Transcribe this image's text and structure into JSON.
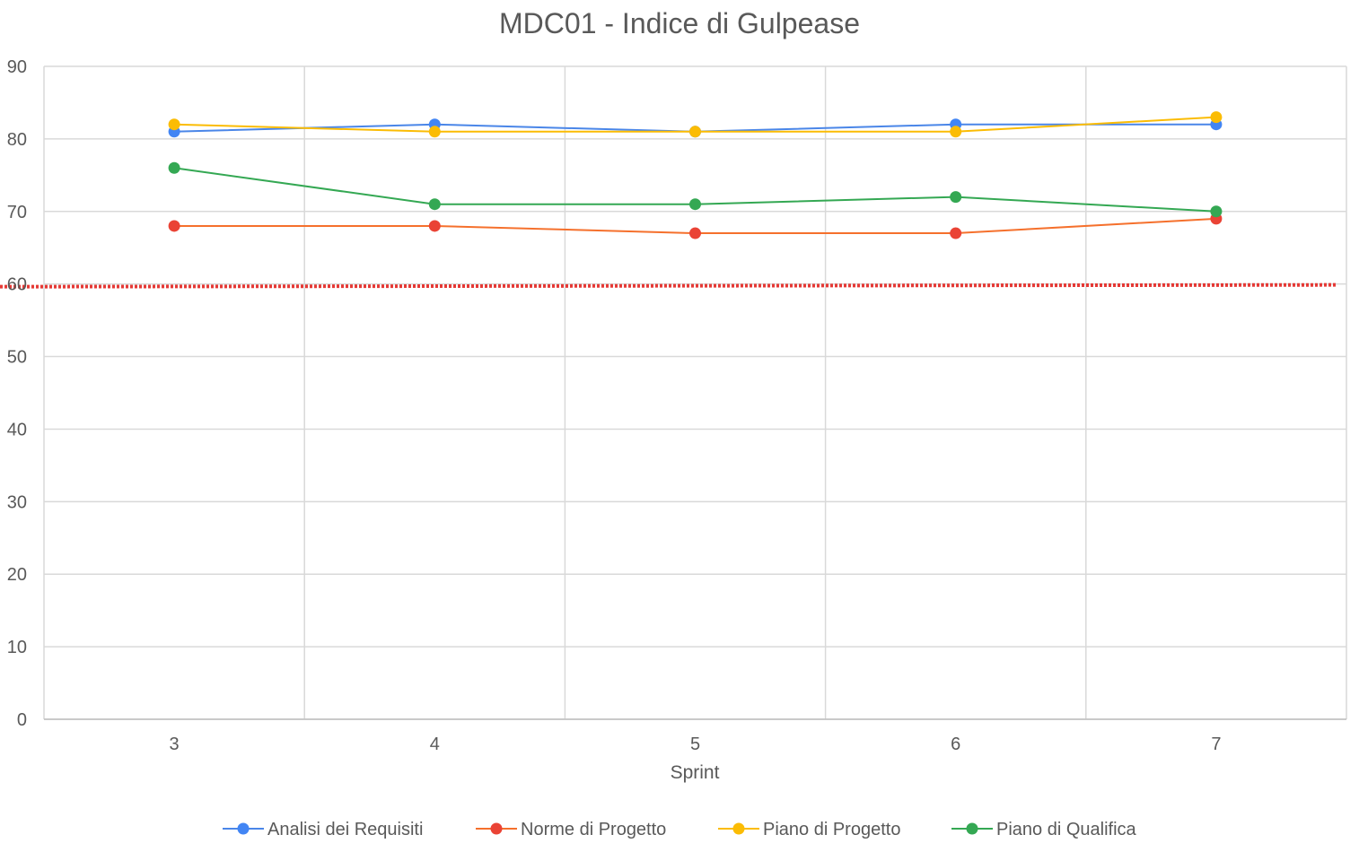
{
  "chart_data": {
    "type": "line",
    "title": "MDC01 - Indice di Gulpease",
    "xlabel": "Sprint",
    "ylabel": "",
    "categories": [
      "3",
      "4",
      "5",
      "6",
      "7"
    ],
    "yticks": [
      "0",
      "10",
      "20",
      "30",
      "40",
      "50",
      "60",
      "70",
      "80",
      "90"
    ],
    "ylim": [
      0,
      90
    ],
    "grid": true,
    "legend_position": "bottom",
    "series": [
      {
        "name": "Analisi dei Requisiti",
        "values": [
          81,
          82,
          81,
          82,
          82
        ],
        "line_color": "#4a86e8",
        "marker_color": "#4285f4"
      },
      {
        "name": "Norme di Progetto",
        "values": [
          68,
          68,
          67,
          67,
          69
        ],
        "line_color": "#f5702c",
        "marker_color": "#ea4335"
      },
      {
        "name": "Piano di Progetto",
        "values": [
          82,
          81,
          81,
          81,
          83
        ],
        "line_color": "#fbbc04",
        "marker_color": "#fbbc04"
      },
      {
        "name": "Piano di Qualifica",
        "values": [
          76,
          71,
          71,
          72,
          70
        ],
        "line_color": "#34a853",
        "marker_color": "#34a853"
      }
    ],
    "threshold": {
      "value": 60,
      "color": "#e53935",
      "style": "dotted"
    }
  }
}
